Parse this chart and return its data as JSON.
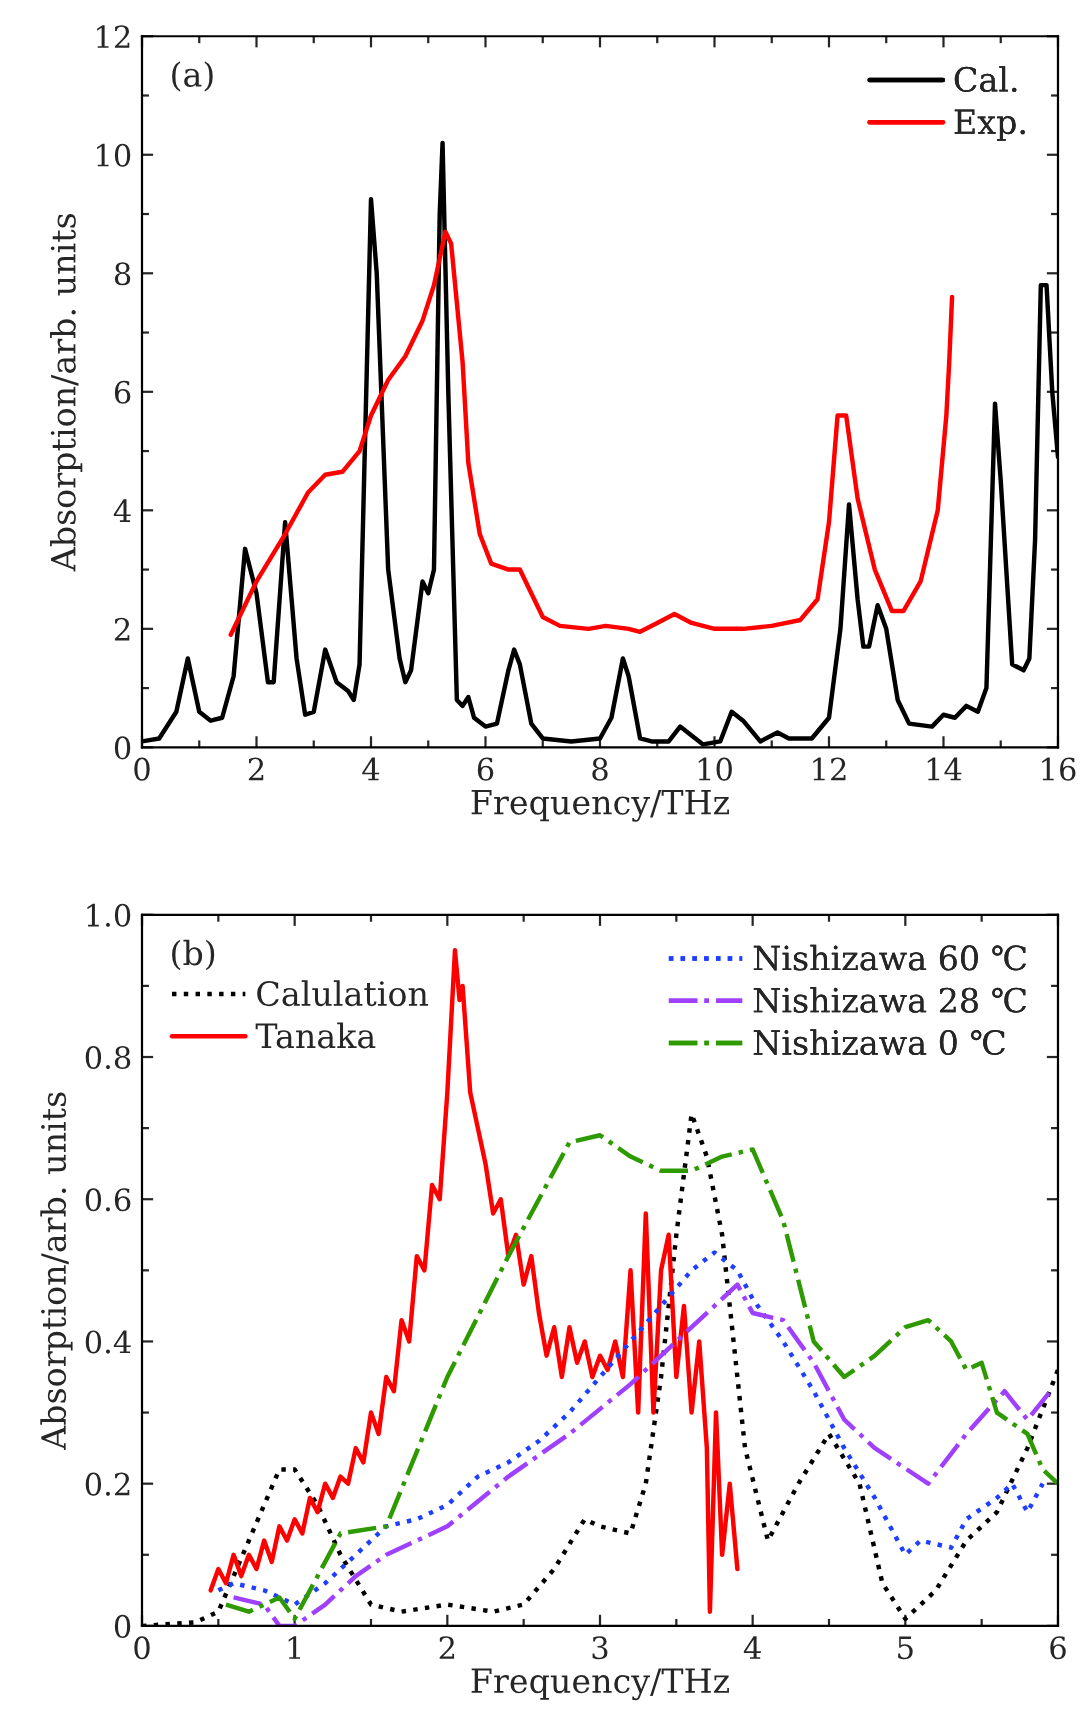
{
  "chart_data": [
    {
      "type": "line",
      "xlabel": "Frequency/THz",
      "ylabel": "Absorption/arb. units",
      "annotations": [
        "(a)"
      ],
      "xlim": [
        0,
        16
      ],
      "ylim": [
        0,
        12
      ],
      "xticks": [
        0,
        {
          "value": 1,
          "label": null
        },
        2,
        {
          "value": 3,
          "label": null
        },
        4,
        {
          "value": 5,
          "label": null
        },
        6,
        {
          "value": 7,
          "label": null
        },
        8,
        {
          "value": 9,
          "label": null
        },
        10,
        {
          "value": 11,
          "label": null
        },
        12,
        {
          "value": 13,
          "label": null
        },
        14,
        {
          "value": 15,
          "label": null
        },
        16
      ],
      "yticks": [
        0,
        {
          "value": 1,
          "label": null
        },
        2,
        {
          "value": 3,
          "label": null
        },
        4,
        {
          "value": 5,
          "label": null
        },
        6,
        {
          "value": 7,
          "label": null
        },
        8,
        {
          "value": 9,
          "label": null
        },
        10,
        {
          "value": 11,
          "label": null
        },
        12
      ],
      "legend": "top right",
      "grid": false,
      "series": [
        {
          "name": "Cal.",
          "color": "#000000",
          "line_style": "solid",
          "x": [
            0,
            0.3,
            0.6,
            0.8,
            1.0,
            1.2,
            1.4,
            1.6,
            1.8,
            2.0,
            2.2,
            2.3,
            2.5,
            2.7,
            2.85,
            3.0,
            3.2,
            3.4,
            3.6,
            3.7,
            3.8,
            4.0,
            4.1,
            4.3,
            4.5,
            4.6,
            4.7,
            4.9,
            5.0,
            5.1,
            5.2,
            5.25,
            5.35,
            5.5,
            5.6,
            5.7,
            5.8,
            6.0,
            6.2,
            6.4,
            6.5,
            6.6,
            6.8,
            7.0,
            7.5,
            8.0,
            8.2,
            8.4,
            8.5,
            8.7,
            8.9,
            9.2,
            9.4,
            9.6,
            9.8,
            10.1,
            10.3,
            10.5,
            10.8,
            11.1,
            11.3,
            11.7,
            12.0,
            12.2,
            12.35,
            12.5,
            12.6,
            12.7,
            12.85,
            13.0,
            13.2,
            13.4,
            13.8,
            14.0,
            14.2,
            14.4,
            14.6,
            14.75,
            14.9,
            15.0,
            15.2,
            15.4,
            15.5,
            15.6,
            15.7,
            15.8,
            15.9,
            16.0
          ],
          "values": [
            0.1,
            0.15,
            0.6,
            1.5,
            0.6,
            0.45,
            0.5,
            1.2,
            3.35,
            2.6,
            1.1,
            1.1,
            3.8,
            1.5,
            0.55,
            0.6,
            1.65,
            1.1,
            0.95,
            0.8,
            1.4,
            9.25,
            8.0,
            3.0,
            1.5,
            1.1,
            1.3,
            2.8,
            2.6,
            3.0,
            9.0,
            10.2,
            6.0,
            0.8,
            0.7,
            0.85,
            0.5,
            0.35,
            0.4,
            1.3,
            1.65,
            1.4,
            0.4,
            0.15,
            0.1,
            0.15,
            0.5,
            1.5,
            1.2,
            0.15,
            0.1,
            0.1,
            0.35,
            0.2,
            0.05,
            0.1,
            0.6,
            0.45,
            0.1,
            0.25,
            0.15,
            0.15,
            0.5,
            2.0,
            4.1,
            2.5,
            1.7,
            1.7,
            2.4,
            2.0,
            0.8,
            0.4,
            0.35,
            0.55,
            0.5,
            0.7,
            0.6,
            1.0,
            5.8,
            4.5,
            1.4,
            1.3,
            1.5,
            3.5,
            7.8,
            7.8,
            6.0,
            4.9
          ]
        },
        {
          "name": "Exp.",
          "color": "#ff0000",
          "line_style": "solid",
          "x": [
            1.55,
            2.0,
            2.5,
            2.9,
            3.2,
            3.5,
            3.8,
            4.0,
            4.3,
            4.6,
            4.9,
            5.1,
            5.3,
            5.4,
            5.6,
            5.7,
            5.9,
            6.1,
            6.4,
            6.6,
            6.8,
            7.0,
            7.3,
            7.8,
            8.1,
            8.5,
            8.7,
            9.0,
            9.3,
            9.6,
            10.0,
            10.5,
            11.0,
            11.5,
            11.8,
            12.0,
            12.15,
            12.3,
            12.5,
            12.8,
            13.1,
            13.3,
            13.6,
            13.9,
            14.05,
            14.1,
            14.15
          ],
          "values": [
            1.9,
            2.8,
            3.6,
            4.3,
            4.6,
            4.65,
            5.0,
            5.6,
            6.2,
            6.6,
            7.2,
            7.8,
            8.7,
            8.5,
            6.5,
            4.8,
            3.6,
            3.1,
            3.0,
            3.0,
            2.6,
            2.2,
            2.05,
            2.0,
            2.05,
            2.0,
            1.95,
            2.1,
            2.25,
            2.1,
            2.0,
            2.0,
            2.05,
            2.15,
            2.5,
            3.8,
            5.6,
            5.6,
            4.2,
            3.0,
            2.3,
            2.3,
            2.8,
            4.0,
            5.6,
            6.5,
            7.6
          ]
        }
      ]
    },
    {
      "type": "line",
      "xlabel": "Frequency/THz",
      "ylabel": "Absorption/arb. units",
      "annotations": [
        "(b)"
      ],
      "xlim": [
        0,
        6
      ],
      "ylim": [
        0,
        1.0
      ],
      "xticks": [
        0,
        {
          "value": 0.5,
          "label": null
        },
        1,
        {
          "value": 1.5,
          "label": null
        },
        2,
        {
          "value": 2.5,
          "label": null
        },
        3,
        {
          "value": 3.5,
          "label": null
        },
        4,
        {
          "value": 4.5,
          "label": null
        },
        5,
        {
          "value": 5.5,
          "label": null
        },
        6
      ],
      "yticks": [
        0,
        {
          "value": 0.1,
          "label": null
        },
        {
          "value": 0.2,
          "label": "0.2"
        },
        {
          "value": 0.3,
          "label": null
        },
        {
          "value": 0.4,
          "label": "0.4"
        },
        {
          "value": 0.5,
          "label": null
        },
        {
          "value": 0.6,
          "label": "0.6"
        },
        {
          "value": 0.7,
          "label": null
        },
        {
          "value": 0.8,
          "label": "0.8"
        },
        {
          "value": 0.9,
          "label": null
        },
        {
          "value": 1.0,
          "label": "1.0"
        }
      ],
      "legend": "top",
      "grid": false,
      "series": [
        {
          "name": "Calulation",
          "color": "#000000",
          "line_style": "dotted",
          "x": [
            0,
            0.35,
            0.5,
            0.7,
            0.9,
            1.0,
            1.15,
            1.3,
            1.5,
            1.7,
            2.0,
            2.3,
            2.5,
            2.7,
            2.9,
            3.0,
            3.2,
            3.3,
            3.4,
            3.5,
            3.6,
            3.7,
            3.8,
            3.85,
            3.95,
            4.1,
            4.3,
            4.5,
            4.7,
            4.85,
            5.0,
            5.2,
            5.4,
            5.6,
            5.8,
            6.0
          ],
          "values": [
            0,
            0.005,
            0.02,
            0.12,
            0.22,
            0.22,
            0.17,
            0.1,
            0.03,
            0.02,
            0.03,
            0.02,
            0.03,
            0.08,
            0.15,
            0.14,
            0.13,
            0.2,
            0.35,
            0.55,
            0.72,
            0.66,
            0.55,
            0.45,
            0.25,
            0.12,
            0.2,
            0.27,
            0.2,
            0.06,
            0.01,
            0.05,
            0.12,
            0.16,
            0.25,
            0.36
          ]
        },
        {
          "name": "Tanaka",
          "color": "#ff0000",
          "line_style": "solid",
          "x": [
            0.45,
            0.5,
            0.55,
            0.6,
            0.65,
            0.7,
            0.75,
            0.8,
            0.85,
            0.9,
            0.95,
            1.0,
            1.05,
            1.1,
            1.15,
            1.2,
            1.25,
            1.3,
            1.35,
            1.4,
            1.45,
            1.5,
            1.55,
            1.6,
            1.65,
            1.7,
            1.75,
            1.8,
            1.85,
            1.9,
            1.95,
            2.0,
            2.05,
            2.08,
            2.1,
            2.15,
            2.2,
            2.25,
            2.3,
            2.35,
            2.4,
            2.45,
            2.5,
            2.55,
            2.6,
            2.65,
            2.7,
            2.75,
            2.8,
            2.85,
            2.9,
            2.95,
            3.0,
            3.05,
            3.1,
            3.15,
            3.2,
            3.25,
            3.3,
            3.35,
            3.4,
            3.45,
            3.5,
            3.55,
            3.6,
            3.65,
            3.7,
            3.72,
            3.76,
            3.8,
            3.85,
            3.9
          ],
          "values": [
            0.05,
            0.08,
            0.06,
            0.1,
            0.07,
            0.1,
            0.08,
            0.12,
            0.09,
            0.14,
            0.12,
            0.15,
            0.13,
            0.18,
            0.16,
            0.2,
            0.18,
            0.21,
            0.2,
            0.25,
            0.23,
            0.3,
            0.27,
            0.35,
            0.33,
            0.43,
            0.4,
            0.52,
            0.5,
            0.62,
            0.6,
            0.75,
            0.95,
            0.88,
            0.9,
            0.75,
            0.7,
            0.65,
            0.58,
            0.6,
            0.52,
            0.55,
            0.48,
            0.52,
            0.44,
            0.38,
            0.42,
            0.35,
            0.42,
            0.37,
            0.4,
            0.35,
            0.38,
            0.36,
            0.4,
            0.35,
            0.5,
            0.3,
            0.58,
            0.3,
            0.5,
            0.55,
            0.35,
            0.45,
            0.3,
            0.4,
            0.25,
            0.02,
            0.3,
            0.1,
            0.2,
            0.08
          ]
        },
        {
          "name": "Nishizawa 60 ℃",
          "color": "#1f3fff",
          "line_style": "dotted",
          "x": [
            0.5,
            0.6,
            0.8,
            1.0,
            1.2,
            1.4,
            1.6,
            1.8,
            2.0,
            2.2,
            2.4,
            2.6,
            2.8,
            3.0,
            3.2,
            3.4,
            3.6,
            3.75,
            3.9,
            4.0,
            4.2,
            4.4,
            4.6,
            4.8,
            5.0,
            5.1,
            5.3,
            5.4,
            5.6,
            5.7,
            5.8,
            5.9
          ],
          "values": [
            0.05,
            0.06,
            0.05,
            0.03,
            0.06,
            0.1,
            0.14,
            0.15,
            0.17,
            0.21,
            0.23,
            0.26,
            0.3,
            0.35,
            0.4,
            0.45,
            0.5,
            0.525,
            0.5,
            0.46,
            0.4,
            0.33,
            0.25,
            0.18,
            0.1,
            0.12,
            0.11,
            0.15,
            0.18,
            0.2,
            0.16,
            0.2
          ]
        },
        {
          "name": "Nishizawa 28 ℃",
          "color": "#a040ff",
          "line_style": "dashdot",
          "x": [
            0.6,
            0.8,
            0.9,
            1.0,
            1.2,
            1.4,
            1.6,
            2.0,
            2.4,
            2.8,
            3.2,
            3.6,
            3.9,
            4.0,
            4.2,
            4.4,
            4.6,
            4.8,
            5.15,
            5.4,
            5.65,
            5.8,
            5.95
          ],
          "values": [
            0.04,
            0.03,
            0.0,
            0.0,
            0.03,
            0.07,
            0.1,
            0.14,
            0.21,
            0.27,
            0.34,
            0.42,
            0.48,
            0.44,
            0.43,
            0.37,
            0.29,
            0.25,
            0.2,
            0.27,
            0.33,
            0.29,
            0.33
          ]
        },
        {
          "name": "Nishizawa 0 ℃",
          "color": "#2e9a00",
          "line_style": "dashdot",
          "x": [
            0.55,
            0.7,
            0.9,
            1.0,
            1.1,
            1.3,
            1.6,
            2.0,
            2.4,
            2.6,
            2.8,
            3.0,
            3.2,
            3.4,
            3.6,
            3.8,
            4.0,
            4.2,
            4.4,
            4.6,
            4.8,
            5.0,
            5.15,
            5.3,
            5.4,
            5.5,
            5.6,
            5.8,
            5.9,
            6.0
          ],
          "values": [
            0.03,
            0.02,
            0.04,
            0.01,
            0.05,
            0.13,
            0.14,
            0.35,
            0.52,
            0.6,
            0.68,
            0.69,
            0.66,
            0.64,
            0.64,
            0.66,
            0.67,
            0.57,
            0.4,
            0.35,
            0.38,
            0.42,
            0.43,
            0.4,
            0.36,
            0.37,
            0.3,
            0.27,
            0.22,
            0.2
          ]
        }
      ]
    }
  ]
}
